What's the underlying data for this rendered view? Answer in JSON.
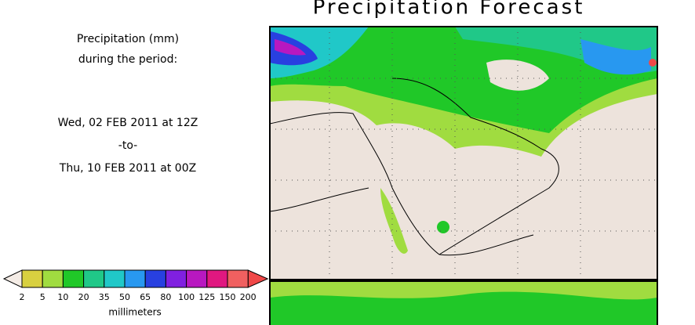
{
  "header": {
    "title": "Precipitation Forecast"
  },
  "period": {
    "heading": [
      "Precipitation (mm)",
      "during the period:"
    ],
    "start": "Wed, 02 FEB 2011 at 12Z",
    "separator": "-to-",
    "end": "Thu, 10 FEB 2011 at 00Z"
  },
  "legend": {
    "labels": [
      2,
      5,
      10,
      20,
      35,
      50,
      65,
      80,
      100,
      125,
      150,
      200
    ],
    "colors": [
      "#d8d040",
      "#a0dc40",
      "#20c828",
      "#20c888",
      "#20c8c8",
      "#2898f0",
      "#2840e0",
      "#8020e0",
      "#b818c0",
      "#e01880",
      "#f06060"
    ],
    "over_color": "#f04848",
    "under_color": "#f4ece6",
    "unit": "millimeters"
  }
}
